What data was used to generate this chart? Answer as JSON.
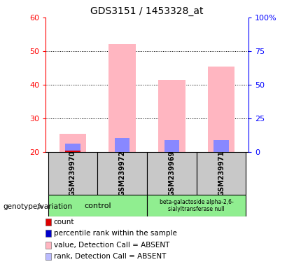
{
  "title": "GDS3151 / 1453328_at",
  "samples": [
    "GSM239970",
    "GSM239972",
    "GSM239969",
    "GSM239971"
  ],
  "group_labels": [
    "control",
    "beta-galactoside alpha-2,6-\nsialyltransferase null"
  ],
  "ylim_left": [
    20,
    60
  ],
  "ylim_right": [
    0,
    100
  ],
  "yticks_left": [
    20,
    30,
    40,
    50,
    60
  ],
  "yticks_right": [
    0,
    25,
    50,
    75,
    100
  ],
  "ytick_labels_right": [
    "0",
    "25",
    "50",
    "75",
    "100%"
  ],
  "bar_bottom": 20,
  "pink_values": [
    25.5,
    52.0,
    41.5,
    45.5
  ],
  "blue_values": [
    22.5,
    24.2,
    23.5,
    23.5
  ],
  "red_values": [
    20.5,
    20.0,
    20.0,
    20.0
  ],
  "pink_color": "#FFB6C1",
  "blue_color": "#8888FF",
  "red_color": "#DD0000",
  "bar_width": 0.55,
  "group_box_color": "#90EE90",
  "sample_box_color": "#C8C8C8",
  "genotype_label": "genotype/variation",
  "title_fontsize": 10,
  "tick_fontsize": 8,
  "legend_fontsize": 7.5,
  "legend_colors": [
    "#DD0000",
    "#0000CC",
    "#FFB6C1",
    "#BBBBFF"
  ],
  "legend_labels": [
    "count",
    "percentile rank within the sample",
    "value, Detection Call = ABSENT",
    "rank, Detection Call = ABSENT"
  ]
}
